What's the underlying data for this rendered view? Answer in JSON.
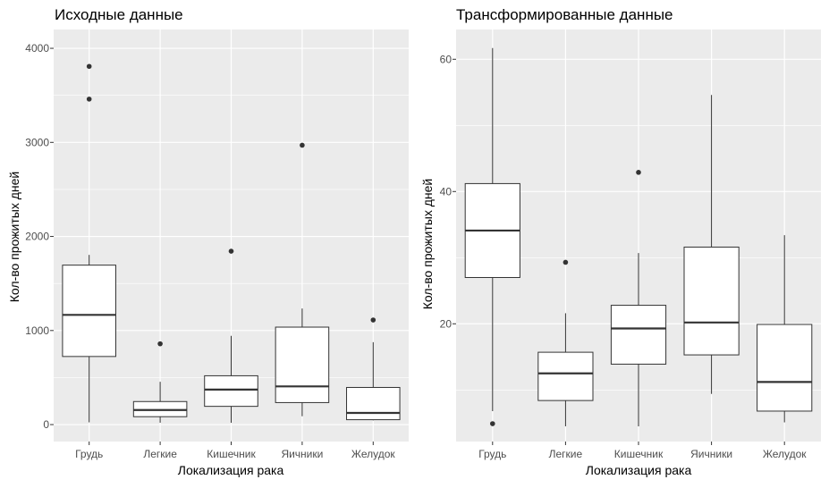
{
  "chart_data": [
    {
      "type": "boxplot",
      "title": "Исходные данные",
      "xlabel": "Локализация рака",
      "ylabel": "Кол-во прожитых дней",
      "ylim": [
        -180,
        4200
      ],
      "yticks": [
        0,
        1000,
        2000,
        3000,
        4000
      ],
      "ytick_labels": [
        "0",
        "1000",
        "2000",
        "3000",
        "4000"
      ],
      "categories": [
        "Грудь",
        "Легкие",
        "Кишечник",
        "Яичники",
        "Желудок"
      ],
      "boxes": [
        {
          "whisker_low": 24,
          "q1": 724,
          "median": 1166,
          "q3": 1695,
          "whisker_high": 1804,
          "outliers": [
            3460,
            3808
          ]
        },
        {
          "whisker_low": 20,
          "q1": 84,
          "median": 155,
          "q3": 245,
          "whisker_high": 455,
          "outliers": [
            859
          ]
        },
        {
          "whisker_low": 20,
          "q1": 194,
          "median": 372,
          "q3": 519,
          "whisker_high": 943,
          "outliers": [
            1843
          ]
        },
        {
          "whisker_low": 89,
          "q1": 234,
          "median": 406,
          "q3": 1036,
          "whisker_high": 1234,
          "outliers": [
            2970
          ]
        },
        {
          "whisker_low": 45,
          "q1": 52,
          "median": 124,
          "q3": 395,
          "whisker_high": 876,
          "outliers": [
            1112
          ]
        }
      ],
      "grid": true
    },
    {
      "type": "boxplot",
      "title": "Трансформированные данные",
      "xlabel": "Локализация рака",
      "ylabel": "Кол-во прожитых дней",
      "ylim": [
        2.2,
        64.5
      ],
      "yticks": [
        20,
        40,
        60
      ],
      "ytick_labels": [
        "20",
        "40",
        "60"
      ],
      "categories": [
        "Грудь",
        "Легкие",
        "Кишечник",
        "Яичники",
        "Желудок"
      ],
      "boxes": [
        {
          "whisker_low": 6.8,
          "q1": 27.0,
          "median": 34.1,
          "q3": 41.2,
          "whisker_high": 61.7,
          "outliers": [
            4.9
          ]
        },
        {
          "whisker_low": 4.5,
          "q1": 8.4,
          "median": 12.5,
          "q3": 15.7,
          "whisker_high": 21.6,
          "outliers": [
            29.3
          ]
        },
        {
          "whisker_low": 4.5,
          "q1": 13.9,
          "median": 19.3,
          "q3": 22.8,
          "whisker_high": 30.7,
          "outliers": [
            42.9
          ]
        },
        {
          "whisker_low": 9.4,
          "q1": 15.3,
          "median": 20.2,
          "q3": 31.6,
          "whisker_high": 54.6,
          "outliers": []
        },
        {
          "whisker_low": 5.1,
          "q1": 6.8,
          "median": 11.2,
          "q3": 19.9,
          "whisker_high": 33.4,
          "outliers": []
        }
      ],
      "grid": true
    }
  ]
}
